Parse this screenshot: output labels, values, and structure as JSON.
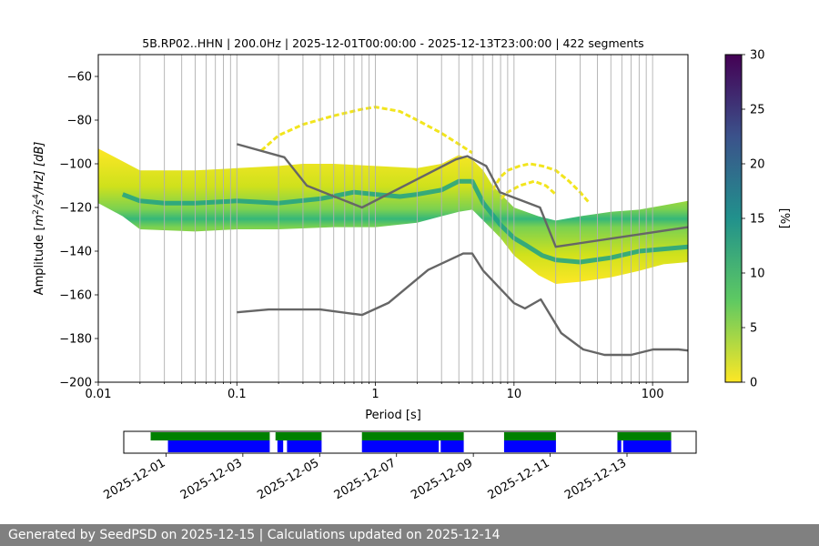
{
  "chart_data": {
    "type": "heatmap",
    "title": "5B.RP02..HHN | 200.0Hz | 2025-12-01T00:00:00 - 2025-12-13T23:00:00 | 422 segments",
    "xlabel": "Period [s]",
    "ylabel_parts": {
      "base": "Amplitude [",
      "m": "m",
      "exp1": "2",
      "mid": "/s",
      "exp2": "4",
      "tail": "/Hz] [dB]"
    },
    "x_scale": "log",
    "xlim": [
      0.01,
      180
    ],
    "ylim": [
      -200,
      -50
    ],
    "x_ticks": [
      0.01,
      0.1,
      1,
      10,
      100
    ],
    "x_tick_labels": [
      "0.01",
      "0.1",
      "1",
      "10",
      "100"
    ],
    "y_ticks": [
      -200,
      -180,
      -160,
      -140,
      -120,
      -100,
      -80,
      -60
    ],
    "y_tick_labels": [
      "−200",
      "−180",
      "−160",
      "−140",
      "−120",
      "−100",
      "−80",
      "−60"
    ],
    "grid": "vertical",
    "colorbar": {
      "label": "[%]",
      "range": [
        0,
        30
      ],
      "ticks": [
        0,
        5,
        10,
        15,
        20,
        25,
        30
      ],
      "tick_labels": [
        "0",
        "5",
        "10",
        "15",
        "20",
        "25",
        "30"
      ],
      "colormap": [
        "#fde725",
        "#5ec962",
        "#21918c",
        "#3b528b",
        "#440154"
      ]
    },
    "density_mode": [
      [
        0.015,
        -114
      ],
      [
        0.02,
        -117
      ],
      [
        0.03,
        -118
      ],
      [
        0.05,
        -118
      ],
      [
        0.1,
        -117
      ],
      [
        0.2,
        -118
      ],
      [
        0.4,
        -116
      ],
      [
        0.7,
        -113
      ],
      [
        1.0,
        -114
      ],
      [
        1.5,
        -115
      ],
      [
        2.0,
        -114
      ],
      [
        3.0,
        -112
      ],
      [
        4.0,
        -108
      ],
      [
        5.0,
        -108
      ],
      [
        6.0,
        -118
      ],
      [
        8.0,
        -128
      ],
      [
        10,
        -134
      ],
      [
        12,
        -137
      ],
      [
        16,
        -142
      ],
      [
        20,
        -144
      ],
      [
        30,
        -145
      ],
      [
        50,
        -143
      ],
      [
        80,
        -140
      ],
      [
        120,
        -139
      ],
      [
        180,
        -138
      ]
    ],
    "density_upper": [
      [
        0.01,
        -93
      ],
      [
        0.02,
        -103
      ],
      [
        0.05,
        -103
      ],
      [
        0.1,
        -102
      ],
      [
        0.2,
        -101
      ],
      [
        0.3,
        -100
      ],
      [
        0.5,
        -100
      ],
      [
        1.0,
        -101
      ],
      [
        2.0,
        -102
      ],
      [
        3.0,
        -100
      ],
      [
        4.0,
        -96
      ],
      [
        5.0,
        -98
      ],
      [
        6.0,
        -103
      ],
      [
        7.0,
        -110
      ],
      [
        10,
        -120
      ],
      [
        15,
        -124
      ],
      [
        20,
        -126
      ],
      [
        30,
        -124
      ],
      [
        50,
        -122
      ],
      [
        80,
        -121
      ],
      [
        120,
        -119
      ],
      [
        180,
        -117
      ]
    ],
    "density_lower": [
      [
        0.01,
        -118
      ],
      [
        0.015,
        -124
      ],
      [
        0.02,
        -130
      ],
      [
        0.05,
        -131
      ],
      [
        0.1,
        -130
      ],
      [
        0.2,
        -130
      ],
      [
        0.5,
        -129
      ],
      [
        1.0,
        -129
      ],
      [
        2.0,
        -127
      ],
      [
        3.0,
        -124
      ],
      [
        4.0,
        -122
      ],
      [
        5.0,
        -121
      ],
      [
        6.0,
        -126
      ],
      [
        8.0,
        -134
      ],
      [
        10,
        -142
      ],
      [
        15,
        -151
      ],
      [
        20,
        -155
      ],
      [
        30,
        -154
      ],
      [
        50,
        -152
      ],
      [
        80,
        -149
      ],
      [
        120,
        -146
      ],
      [
        180,
        -145
      ]
    ],
    "outlier_arc": [
      [
        0.15,
        -94
      ],
      [
        0.2,
        -87
      ],
      [
        0.3,
        -82
      ],
      [
        0.5,
        -78
      ],
      [
        0.8,
        -75
      ],
      [
        1.0,
        -74
      ],
      [
        1.5,
        -76
      ],
      [
        2.0,
        -80
      ],
      [
        3.0,
        -86
      ],
      [
        4.0,
        -91
      ],
      [
        5.0,
        -95
      ]
    ],
    "outlier_humps": [
      [
        [
          7.0,
          -112
        ],
        [
          8.0,
          -106
        ],
        [
          9.0,
          -103
        ],
        [
          11,
          -101
        ],
        [
          13,
          -100
        ],
        [
          16,
          -101
        ],
        [
          20,
          -103
        ],
        [
          25,
          -108
        ],
        [
          30,
          -113
        ],
        [
          35,
          -118
        ]
      ],
      [
        [
          8.0,
          -116
        ],
        [
          9.0,
          -113
        ],
        [
          11,
          -110
        ],
        [
          14,
          -108
        ],
        [
          17,
          -110
        ],
        [
          20,
          -114
        ]
      ]
    ],
    "nhnm": [
      [
        0.1,
        -91
      ],
      [
        0.22,
        -97
      ],
      [
        0.32,
        -110
      ],
      [
        0.8,
        -120
      ],
      [
        3.8,
        -98
      ],
      [
        4.6,
        -96.5
      ],
      [
        6.3,
        -101
      ],
      [
        7.9,
        -113
      ],
      [
        15.4,
        -120
      ],
      [
        20,
        -138
      ],
      [
        180,
        -129
      ]
    ],
    "nlnm": [
      [
        0.1,
        -168
      ],
      [
        0.17,
        -166.7
      ],
      [
        0.4,
        -166.7
      ],
      [
        0.8,
        -169.2
      ],
      [
        1.24,
        -163.7
      ],
      [
        2.4,
        -148.6
      ],
      [
        4.3,
        -141.1
      ],
      [
        5.0,
        -141.1
      ],
      [
        6.0,
        -149
      ],
      [
        10,
        -163.8
      ],
      [
        12,
        -166.2
      ],
      [
        15.6,
        -162.1
      ],
      [
        21.9,
        -177.5
      ],
      [
        31.6,
        -185
      ],
      [
        45,
        -187.5
      ],
      [
        70,
        -187.5
      ],
      [
        101,
        -185
      ],
      [
        154,
        -185
      ],
      [
        180,
        -185.5
      ]
    ]
  },
  "availability": {
    "date_labels": [
      "2025-12-01",
      "2025-12-03",
      "2025-12-05",
      "2025-12-07",
      "2025-12-09",
      "2025-12-11",
      "2025-12-13"
    ],
    "date_tick_days": [
      1,
      3,
      5,
      7,
      9,
      11,
      13
    ],
    "xlim_days": [
      -0.1,
      14.8
    ],
    "data_bars_days": [
      [
        0.6,
        3.7
      ],
      [
        3.85,
        5.05
      ],
      [
        6.1,
        8.75
      ],
      [
        9.8,
        11.15
      ],
      [
        12.75,
        14.15
      ]
    ],
    "coverage_bars_days": [
      [
        1.05,
        3.7
      ],
      [
        3.9,
        4.05
      ],
      [
        4.15,
        5.05
      ],
      [
        6.1,
        8.1
      ],
      [
        8.15,
        8.75
      ],
      [
        9.8,
        11.15
      ],
      [
        12.75,
        12.85
      ],
      [
        12.9,
        14.15
      ]
    ],
    "data_color": "#008000",
    "coverage_color": "#0000ff"
  },
  "footer": {
    "text": "Generated by SeedPSD on 2025-12-15 | Calculations updated on 2025-12-14"
  },
  "colors": {
    "noise_model": "#666666",
    "grid": "#b0b0b0",
    "footer_bg": "#808080"
  }
}
